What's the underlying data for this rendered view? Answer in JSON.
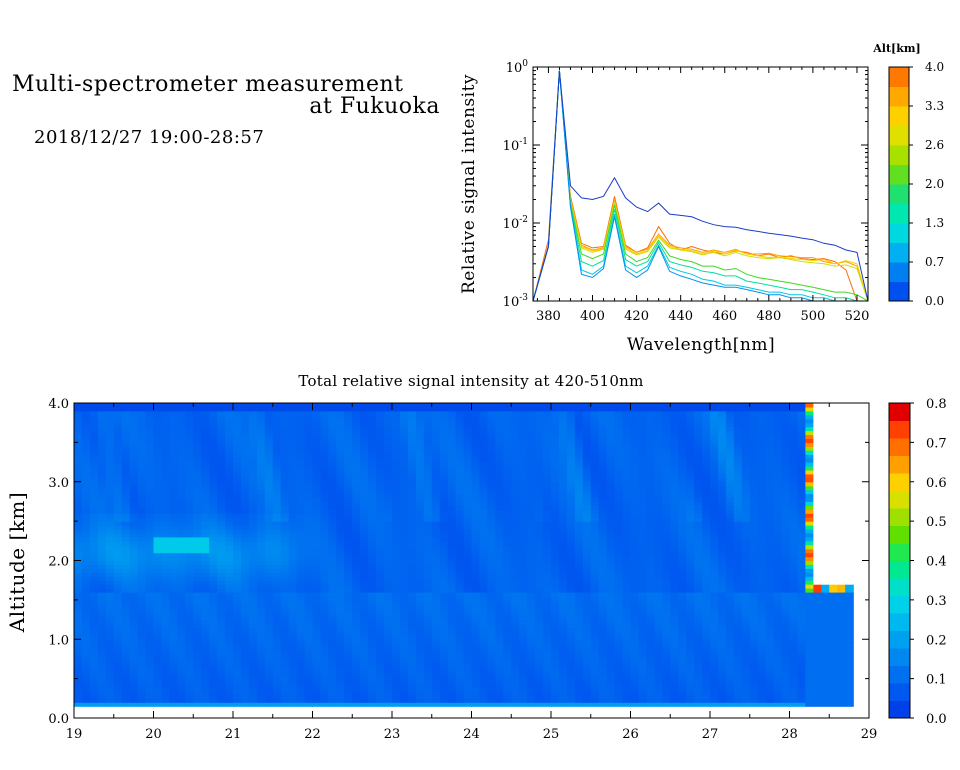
{
  "header": {
    "title_line1": "Multi-spectrometer measurement",
    "title_line2": "at Fukuoka",
    "datetime": "2018/12/27 19:00-28:57"
  },
  "chart_data": [
    {
      "type": "line",
      "xlabel": "Wavelength[nm]",
      "ylabel": "Relative signal intensity",
      "xlim": [
        373,
        525
      ],
      "ylim": [
        0.001,
        1
      ],
      "y_scale": "log",
      "x_ticks": [
        380,
        400,
        420,
        440,
        460,
        480,
        500,
        520
      ],
      "y_ticks": [
        {
          "base": "10",
          "exp": "0"
        },
        {
          "base": "10",
          "exp": "-1"
        },
        {
          "base": "10",
          "exp": "-2"
        },
        {
          "base": "10",
          "exp": "-3"
        }
      ],
      "x": [
        373,
        380,
        385,
        390,
        395,
        400,
        405,
        410,
        415,
        420,
        425,
        430,
        435,
        440,
        445,
        450,
        455,
        460,
        465,
        470,
        475,
        480,
        485,
        490,
        495,
        500,
        505,
        510,
        515,
        520,
        525
      ],
      "series": [
        {
          "altitude_km": 4.0,
          "color": "#ff6a00",
          "values": [
            0.001,
            0.006,
            0.9,
            0.022,
            0.0055,
            0.0048,
            0.005,
            0.022,
            0.0052,
            0.0042,
            0.0048,
            0.009,
            0.0055,
            0.0045,
            0.005,
            0.0045,
            0.0042,
            0.004,
            0.0044,
            0.0042,
            0.0038,
            0.004,
            0.0036,
            0.0038,
            0.0035,
            0.0034,
            0.0035,
            0.0032,
            0.0025,
            0.001,
            0.001
          ]
        },
        {
          "altitude_km": 3.5,
          "color": "#ffa000",
          "values": [
            0.001,
            0.005,
            0.9,
            0.02,
            0.0052,
            0.0045,
            0.0048,
            0.02,
            0.005,
            0.0042,
            0.0046,
            0.0072,
            0.0052,
            0.0048,
            0.0046,
            0.0042,
            0.0045,
            0.0042,
            0.0046,
            0.004,
            0.004,
            0.0041,
            0.0038,
            0.0037,
            0.0036,
            0.0036,
            0.0032,
            0.003,
            0.0032,
            0.0028,
            0.001
          ]
        },
        {
          "altitude_km": 3.0,
          "color": "#ffcc00",
          "values": [
            0.001,
            0.005,
            0.9,
            0.02,
            0.005,
            0.0044,
            0.0046,
            0.019,
            0.0048,
            0.004,
            0.0044,
            0.0068,
            0.005,
            0.0046,
            0.0044,
            0.004,
            0.0044,
            0.004,
            0.0045,
            0.004,
            0.0038,
            0.0036,
            0.0037,
            0.0035,
            0.0034,
            0.0033,
            0.0034,
            0.003,
            0.0033,
            0.003,
            0.001
          ]
        },
        {
          "altitude_km": 2.5,
          "color": "#cce000",
          "values": [
            0.001,
            0.005,
            0.9,
            0.019,
            0.0048,
            0.0042,
            0.0046,
            0.019,
            0.0046,
            0.0039,
            0.0043,
            0.0066,
            0.0048,
            0.0045,
            0.0043,
            0.0039,
            0.0042,
            0.0038,
            0.0042,
            0.0038,
            0.0036,
            0.0035,
            0.0036,
            0.0034,
            0.0032,
            0.0031,
            0.003,
            0.0028,
            0.0029,
            0.0026,
            0.001
          ]
        },
        {
          "altitude_km": 2.0,
          "color": "#40d820",
          "values": [
            0.001,
            0.005,
            0.9,
            0.018,
            0.004,
            0.0035,
            0.004,
            0.017,
            0.004,
            0.0032,
            0.0036,
            0.006,
            0.0038,
            0.0034,
            0.0032,
            0.0028,
            0.0028,
            0.0025,
            0.0026,
            0.0022,
            0.002,
            0.0019,
            0.0018,
            0.0017,
            0.0016,
            0.0015,
            0.0014,
            0.0013,
            0.0013,
            0.0012,
            0.001
          ]
        },
        {
          "altitude_km": 1.5,
          "color": "#00e0a0",
          "values": [
            0.001,
            0.005,
            0.9,
            0.017,
            0.0032,
            0.0028,
            0.0033,
            0.015,
            0.0034,
            0.0028,
            0.0032,
            0.0056,
            0.0032,
            0.0029,
            0.0027,
            0.0024,
            0.0023,
            0.0021,
            0.0021,
            0.0018,
            0.0017,
            0.0016,
            0.0015,
            0.0014,
            0.0014,
            0.0013,
            0.0012,
            0.0011,
            0.0011,
            0.001,
            0.001
          ]
        },
        {
          "altitude_km": 1.0,
          "color": "#00c8e0",
          "values": [
            0.001,
            0.005,
            0.9,
            0.016,
            0.0025,
            0.0022,
            0.0028,
            0.013,
            0.0028,
            0.0023,
            0.0028,
            0.0052,
            0.0027,
            0.0024,
            0.0022,
            0.0019,
            0.0018,
            0.0016,
            0.0016,
            0.0015,
            0.0014,
            0.0013,
            0.0013,
            0.0012,
            0.0012,
            0.0011,
            0.0011,
            0.001,
            0.001,
            0.001,
            0.001
          ]
        },
        {
          "altitude_km": 0.5,
          "color": "#0090f0",
          "values": [
            0.001,
            0.005,
            0.9,
            0.016,
            0.0022,
            0.002,
            0.0026,
            0.012,
            0.0025,
            0.002,
            0.0025,
            0.005,
            0.0024,
            0.0021,
            0.0019,
            0.0017,
            0.0016,
            0.0015,
            0.0015,
            0.0014,
            0.0013,
            0.0012,
            0.0012,
            0.0011,
            0.0011,
            0.001,
            0.001,
            0.001,
            0.001,
            0.001,
            0.001
          ]
        },
        {
          "altitude_km": 0.0,
          "color": "#1a3cc8",
          "values": [
            0.001,
            0.005,
            0.9,
            0.03,
            0.021,
            0.02,
            0.022,
            0.038,
            0.021,
            0.016,
            0.014,
            0.018,
            0.013,
            0.0125,
            0.012,
            0.0105,
            0.0095,
            0.009,
            0.0088,
            0.0082,
            0.0078,
            0.0074,
            0.0071,
            0.0068,
            0.0064,
            0.0061,
            0.0055,
            0.0052,
            0.0045,
            0.0042,
            0.001
          ]
        }
      ],
      "colorbar": {
        "title": "Alt[km]",
        "ticks": [
          "0.0",
          "0.7",
          "1.3",
          "2.0",
          "2.6",
          "3.3",
          "4.0"
        ],
        "colors": [
          "#0050f0",
          "#0080f0",
          "#00b0f0",
          "#00d8e0",
          "#00e8b0",
          "#20e070",
          "#60e020",
          "#a8e000",
          "#e0e000",
          "#ffd000",
          "#ffa800",
          "#ff7800"
        ]
      }
    },
    {
      "type": "heatmap",
      "title": "Total relative signal intensity at 420-510nm",
      "xlabel": "",
      "ylabel": "Altitude [km]",
      "xlim": [
        19,
        29
      ],
      "ylim": [
        0,
        4
      ],
      "x_ticks": [
        "19",
        "20",
        "21",
        "22",
        "23",
        "24",
        "25",
        "26",
        "27",
        "28",
        "29"
      ],
      "y_ticks": [
        "0.0",
        "1.0",
        "2.0",
        "3.0",
        "4.0"
      ],
      "data_extent": {
        "x_start": 19,
        "x_end": 28.8,
        "y_start": 0.15,
        "y_end": 4.0
      },
      "features": {
        "near_ground_band_km": [
          0.15,
          0.3
        ],
        "low_layer_top_km": 1.6,
        "elevated_layer_km": [
          1.6,
          2.6
        ],
        "elevated_layer_end_hour": 21.5,
        "enhanced_patch": {
          "hours": [
            20.0,
            20.7
          ],
          "altitude_km": 2.2
        },
        "cloud_onset_hour": 28.15,
        "cloud_base_km": 1.65
      },
      "colorbar": {
        "ticks": [
          "0.0",
          "0.1",
          "0.2",
          "0.3",
          "0.4",
          "0.5",
          "0.6",
          "0.7",
          "0.8"
        ],
        "colors": [
          "#0040e8",
          "#0058f0",
          "#0070f0",
          "#0088f0",
          "#00a0f0",
          "#00b8f0",
          "#00d0e8",
          "#00e0c8",
          "#00e890",
          "#20e850",
          "#60e000",
          "#a0e000",
          "#d8e000",
          "#ffd000",
          "#ffa000",
          "#ff7000",
          "#ff4000",
          "#e00000"
        ]
      }
    }
  ]
}
